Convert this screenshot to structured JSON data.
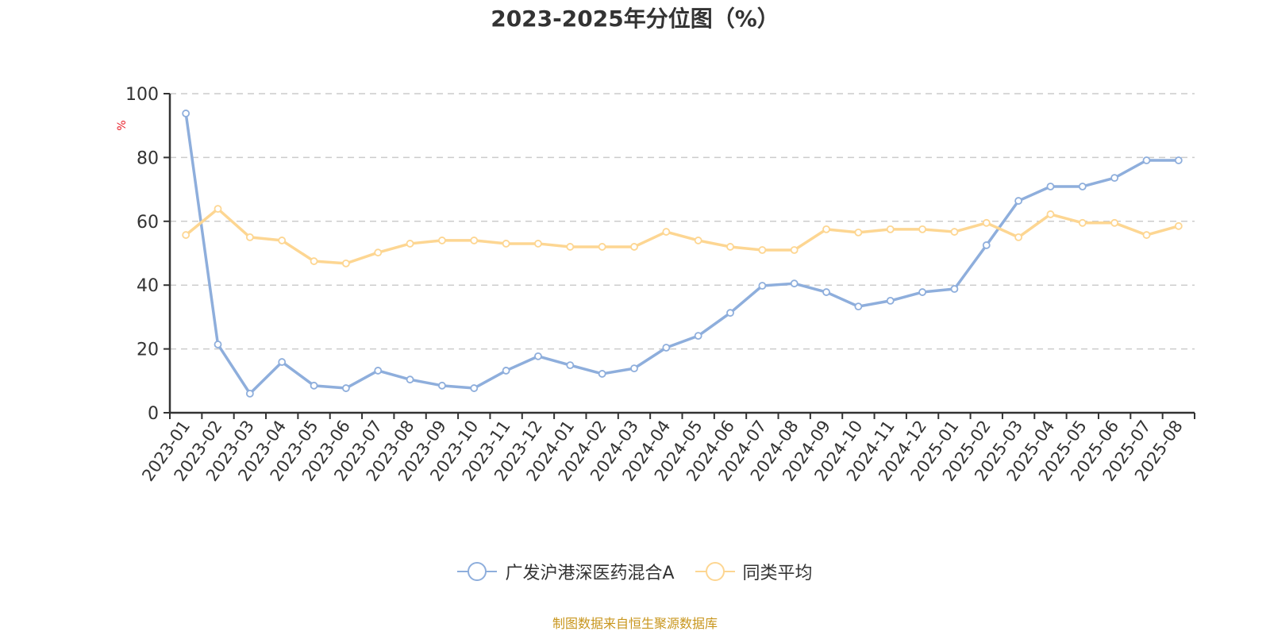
{
  "title": "2023-2025年分位图（%）",
  "source_note": "制图数据来自恒生聚源数据库",
  "colors": {
    "fund": "#8eaedc",
    "average": "#fdd692",
    "axis": "#333333",
    "grid": "#cccccc",
    "ylabel": "#e8202a",
    "source": "#c8961e"
  },
  "legend": [
    {
      "label": "广发沪港深医药混合A",
      "color": "#8eaedc"
    },
    {
      "label": "同类平均",
      "color": "#fdd692"
    }
  ],
  "chart_data": {
    "type": "line",
    "title": "2023-2025年分位图（%）",
    "xlabel": "",
    "ylabel": "%",
    "ylim": [
      0,
      100
    ],
    "yticks": [
      0,
      20,
      40,
      60,
      80,
      100
    ],
    "grid": "horizontal dashed",
    "legend_position": "bottom",
    "categories": [
      "2023-01",
      "2023-02",
      "2023-03",
      "2023-04",
      "2023-05",
      "2023-06",
      "2023-07",
      "2023-08",
      "2023-09",
      "2023-10",
      "2023-11",
      "2023-12",
      "2024-01",
      "2024-02",
      "2024-03",
      "2024-04",
      "2024-05",
      "2024-06",
      "2024-07",
      "2024-08",
      "2024-09",
      "2024-10",
      "2024-11",
      "2024-12",
      "2025-01",
      "2025-02",
      "2025-03",
      "2025-04",
      "2025-05",
      "2025-06",
      "2025-07",
      "2025-08"
    ],
    "series": [
      {
        "name": "广发沪港深医药混合A",
        "values": [
          93.8,
          21.4,
          6.0,
          15.9,
          8.5,
          7.7,
          13.2,
          10.4,
          8.5,
          7.7,
          13.2,
          17.7,
          14.9,
          12.2,
          13.9,
          20.4,
          24.1,
          31.3,
          39.8,
          40.5,
          37.8,
          33.3,
          35.1,
          37.8,
          38.8,
          52.5,
          66.4,
          70.9,
          70.9,
          73.6,
          79.1,
          79.1
        ]
      },
      {
        "name": "同类平均",
        "values": [
          55.7,
          63.9,
          55.0,
          54.0,
          47.5,
          46.8,
          50.2,
          53.0,
          54.0,
          54.0,
          53.0,
          53.0,
          52.0,
          52.0,
          52.0,
          56.7,
          54.0,
          52.0,
          51.0,
          51.0,
          57.5,
          56.5,
          57.5,
          57.5,
          56.7,
          59.5,
          55.0,
          62.2,
          59.5,
          59.5,
          55.7,
          58.5
        ]
      }
    ]
  }
}
